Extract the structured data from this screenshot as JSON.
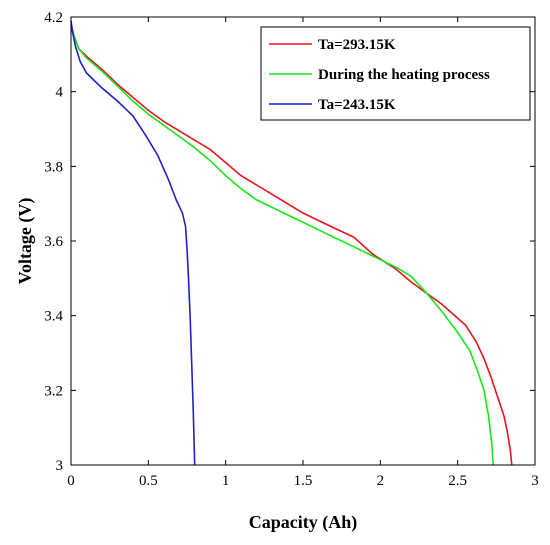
{
  "chart_data": {
    "type": "line",
    "xlabel": "Capacity (Ah)",
    "ylabel": "Voltage (V)",
    "xlim": [
      0,
      3
    ],
    "ylim": [
      3,
      4.2
    ],
    "xticks": [
      0,
      0.5,
      1,
      1.5,
      2,
      2.5,
      3
    ],
    "xtick_labels": [
      "0",
      "0.5",
      "1",
      "1.5",
      "2",
      "2.5",
      "3"
    ],
    "yticks": [
      3,
      3.2,
      3.4,
      3.6,
      3.8,
      4,
      4.2
    ],
    "ytick_labels": [
      "3",
      "3.2",
      "3.4",
      "3.6",
      "3.8",
      "4",
      "4.2"
    ],
    "grid": false,
    "legend_position": "top-right",
    "series": [
      {
        "name": "Ta=293.15K",
        "color": "#e8141c",
        "x": [
          0,
          0.02,
          0.05,
          0.1,
          0.2,
          0.3,
          0.4,
          0.5,
          0.6,
          0.7,
          0.8,
          0.9,
          1.0,
          1.1,
          1.2,
          1.3,
          1.4,
          1.5,
          1.6,
          1.7,
          1.83,
          1.95,
          2.1,
          2.2,
          2.3,
          2.4,
          2.55,
          2.62,
          2.67,
          2.72,
          2.76,
          2.8,
          2.82,
          2.84,
          2.85
        ],
        "y": [
          4.18,
          4.15,
          4.115,
          4.095,
          4.06,
          4.02,
          3.985,
          3.95,
          3.92,
          3.895,
          3.87,
          3.845,
          3.81,
          3.775,
          3.75,
          3.725,
          3.7,
          3.675,
          3.655,
          3.635,
          3.61,
          3.565,
          3.525,
          3.49,
          3.46,
          3.43,
          3.375,
          3.33,
          3.285,
          3.23,
          3.18,
          3.13,
          3.09,
          3.04,
          3.0
        ]
      },
      {
        "name": "During the heating process",
        "color": "#19e619",
        "x": [
          0,
          0.02,
          0.05,
          0.1,
          0.2,
          0.3,
          0.4,
          0.5,
          0.6,
          0.7,
          0.8,
          0.9,
          1.0,
          1.1,
          1.2,
          1.3,
          1.4,
          1.5,
          1.6,
          1.7,
          1.8,
          1.9,
          2.0,
          2.1,
          2.2,
          2.3,
          2.4,
          2.5,
          2.58,
          2.63,
          2.67,
          2.7,
          2.72,
          2.73
        ],
        "y": [
          4.18,
          4.15,
          4.115,
          4.09,
          4.055,
          4.015,
          3.975,
          3.94,
          3.91,
          3.88,
          3.85,
          3.815,
          3.775,
          3.74,
          3.71,
          3.69,
          3.67,
          3.65,
          3.63,
          3.61,
          3.59,
          3.57,
          3.55,
          3.53,
          3.505,
          3.46,
          3.41,
          3.355,
          3.305,
          3.25,
          3.2,
          3.13,
          3.06,
          3.0
        ]
      },
      {
        "name": "Ta=243.15K",
        "color": "#2121c8",
        "x": [
          0,
          0.01,
          0.03,
          0.06,
          0.1,
          0.15,
          0.2,
          0.3,
          0.4,
          0.48,
          0.56,
          0.63,
          0.68,
          0.72,
          0.74,
          0.75,
          0.76,
          0.77,
          0.78,
          0.79,
          0.8
        ],
        "y": [
          4.19,
          4.16,
          4.12,
          4.08,
          4.05,
          4.03,
          4.01,
          3.975,
          3.935,
          3.885,
          3.83,
          3.765,
          3.71,
          3.675,
          3.64,
          3.58,
          3.5,
          3.4,
          3.28,
          3.15,
          3.0
        ]
      }
    ]
  }
}
